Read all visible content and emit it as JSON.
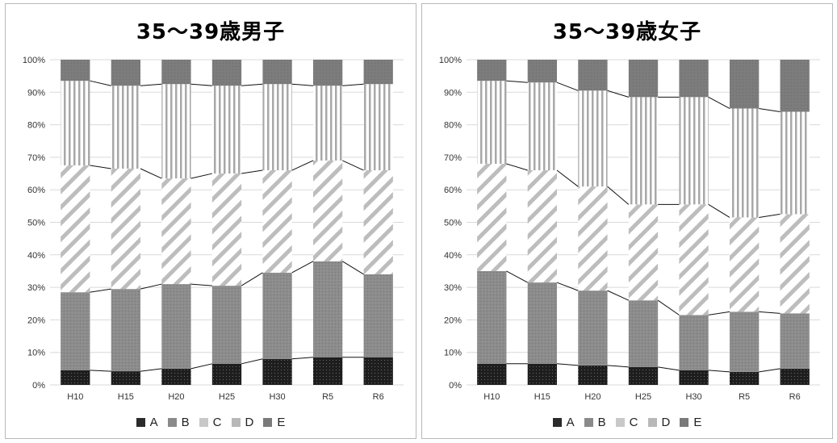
{
  "chart_data": [
    {
      "type": "bar",
      "title": "35～39歳男子",
      "categories": [
        "H10",
        "H15",
        "H20",
        "H25",
        "H30",
        "R5",
        "R6"
      ],
      "y_ticks": [
        "0%",
        "10%",
        "20%",
        "30%",
        "40%",
        "50%",
        "60%",
        "70%",
        "80%",
        "90%",
        "100%"
      ],
      "ylim": [
        0,
        100
      ],
      "stacked": true,
      "legend_position": "bottom",
      "series": [
        {
          "name": "A",
          "values": [
            4.5,
            4.2,
            5.0,
            6.5,
            8.0,
            8.5,
            8.5
          ]
        },
        {
          "name": "B",
          "values": [
            24.0,
            25.3,
            26.0,
            24.0,
            26.5,
            29.5,
            25.5
          ]
        },
        {
          "name": "C",
          "values": [
            39.0,
            37.0,
            32.5,
            34.5,
            31.5,
            31.0,
            32.0
          ]
        },
        {
          "name": "D",
          "values": [
            26.0,
            25.5,
            29.0,
            27.0,
            26.5,
            23.0,
            26.5
          ]
        },
        {
          "name": "E",
          "values": [
            6.5,
            8.0,
            7.5,
            8.0,
            7.5,
            8.0,
            7.5
          ]
        }
      ]
    },
    {
      "type": "bar",
      "title": "35～39歳女子",
      "categories": [
        "H10",
        "H15",
        "H20",
        "H25",
        "H30",
        "R5",
        "R6"
      ],
      "y_ticks": [
        "0%",
        "10%",
        "20%",
        "30%",
        "40%",
        "50%",
        "60%",
        "70%",
        "80%",
        "90%",
        "100%"
      ],
      "ylim": [
        0,
        100
      ],
      "stacked": true,
      "legend_position": "bottom",
      "series": [
        {
          "name": "A",
          "values": [
            6.5,
            6.5,
            6.0,
            5.5,
            4.5,
            4.0,
            5.0
          ]
        },
        {
          "name": "B",
          "values": [
            28.5,
            25.0,
            23.0,
            20.5,
            17.0,
            18.5,
            17.0
          ]
        },
        {
          "name": "C",
          "values": [
            33.0,
            34.5,
            32.0,
            29.5,
            34.0,
            29.0,
            30.5
          ]
        },
        {
          "name": "D",
          "values": [
            25.5,
            27.0,
            29.5,
            33.0,
            33.0,
            33.5,
            31.5
          ]
        },
        {
          "name": "E",
          "values": [
            6.5,
            7.0,
            9.5,
            11.5,
            11.5,
            15.0,
            16.0
          ]
        }
      ]
    }
  ]
}
